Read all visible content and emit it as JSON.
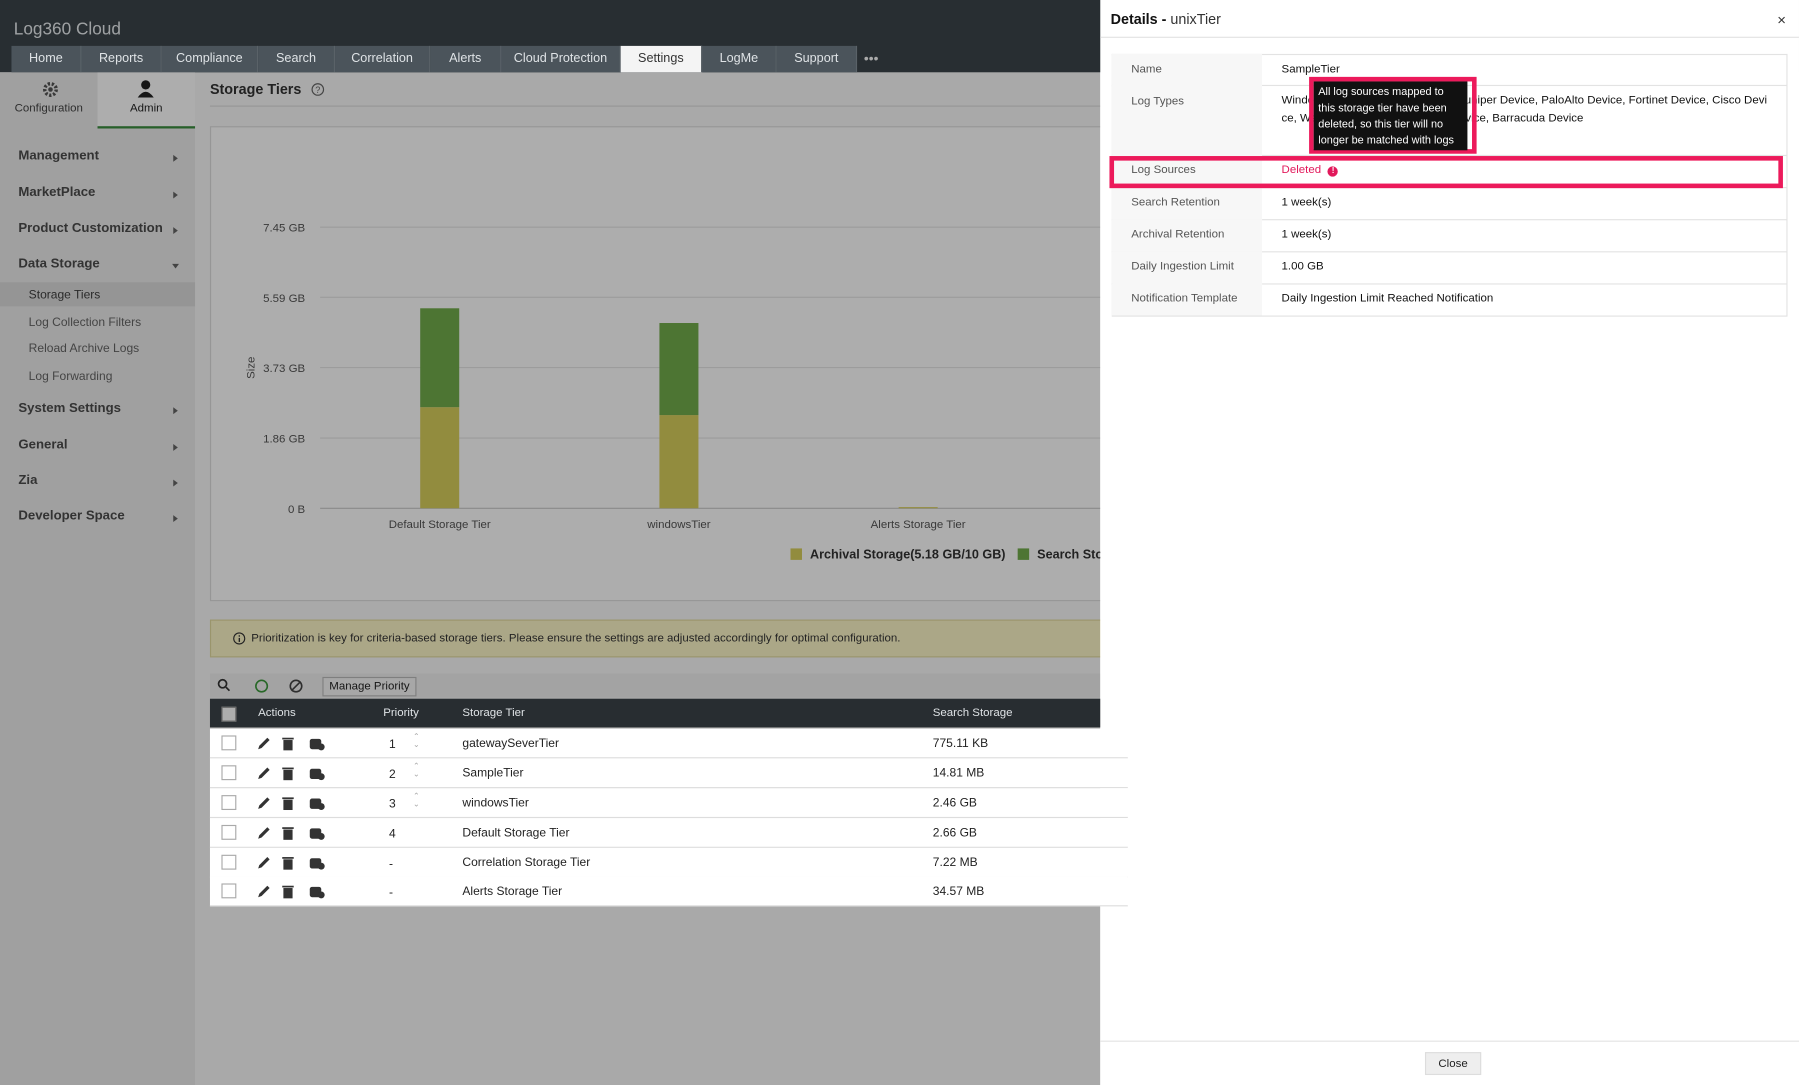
{
  "header": {
    "logo": "Log360 Cloud",
    "tabs": [
      "Home",
      "Reports",
      "Compliance",
      "Search",
      "Correlation",
      "Alerts",
      "Cloud Protection",
      "Settings",
      "LogMe",
      "Support"
    ]
  },
  "sidebar": {
    "top": [
      "Configuration",
      "Admin"
    ],
    "menu": [
      "Management",
      "MarketPlace",
      "Product Customization",
      "Data Storage"
    ],
    "submenu": [
      "Storage Tiers",
      "Log Collection Filters",
      "Reload Archive Logs",
      "Log Forwarding"
    ],
    "menu2": [
      "System Settings",
      "General",
      "Zia",
      "Developer Space"
    ]
  },
  "page_title": "Storage Tiers",
  "chart": {
    "type": "bar",
    "stacked": true,
    "y_axis_label": "Size",
    "categories": [
      "Default Storage Tier",
      "windowsTier",
      "Alerts Storage Tier"
    ],
    "series": [
      {
        "name": "Archival Storage(5.18 GB/10 GB)",
        "color": "#d8ce5c",
        "values": [
          2.68,
          2.47,
          0.03
        ]
      },
      {
        "name": "Search Sto",
        "color": "#72ad4c",
        "values": [
          2.62,
          2.44,
          0
        ]
      }
    ],
    "ylim": [
      0,
      7.45
    ],
    "yticks": [
      {
        "value": 0,
        "label": "0 B"
      },
      {
        "value": 1.86,
        "label": "1.86 GB"
      },
      {
        "value": 3.73,
        "label": "3.73 GB"
      },
      {
        "value": 5.59,
        "label": "5.59 GB"
      },
      {
        "value": 7.45,
        "label": "7.45 GB"
      }
    ],
    "grid": true
  },
  "notice": "Prioritization is key for criteria-based storage tiers. Please ensure the settings are adjusted accordingly for optimal configuration.",
  "toolbar": {
    "manage_priority": "Manage Priority"
  },
  "table": {
    "headers": [
      "Actions",
      "Priority",
      "Storage Tier",
      "Search Storage"
    ],
    "rows": [
      [
        "1",
        "gatewaySeverTier",
        "775.11 KB"
      ],
      [
        "2",
        "SampleTier",
        "14.81 MB"
      ],
      [
        "3",
        "windowsTier",
        "2.46 GB"
      ],
      [
        "4",
        "Default Storage Tier",
        "2.66 GB"
      ],
      [
        "-",
        "Correlation Storage Tier",
        "7.22 MB"
      ],
      [
        "-",
        "Alerts Storage Tier",
        "34.57 MB"
      ]
    ]
  },
  "panel": {
    "title_prefix": "Details -",
    "title_name": "unixTier",
    "fields": [
      [
        "Name",
        "SampleTier"
      ],
      [
        "Log Types",
        "Windows, Unix, SonicWall Device, Juniper Device, PaloAlto Device, Fortinet Device, Cisco Device, WatchGuard Device, Sophos Device, Barracuda Device"
      ],
      [
        "Log Sources",
        "Deleted"
      ],
      [
        "Search Retention",
        "1 week(s)"
      ],
      [
        "Archival Retention",
        "1 week(s)"
      ],
      [
        "Daily Ingestion Limit",
        "1.00 GB"
      ],
      [
        "Notification Template",
        "Daily Ingestion Limit Reached Notification"
      ]
    ],
    "tooltip": "All log sources mapped to this storage tier have been deleted, so this tier will no longer be matched with logs",
    "close": "Close"
  }
}
